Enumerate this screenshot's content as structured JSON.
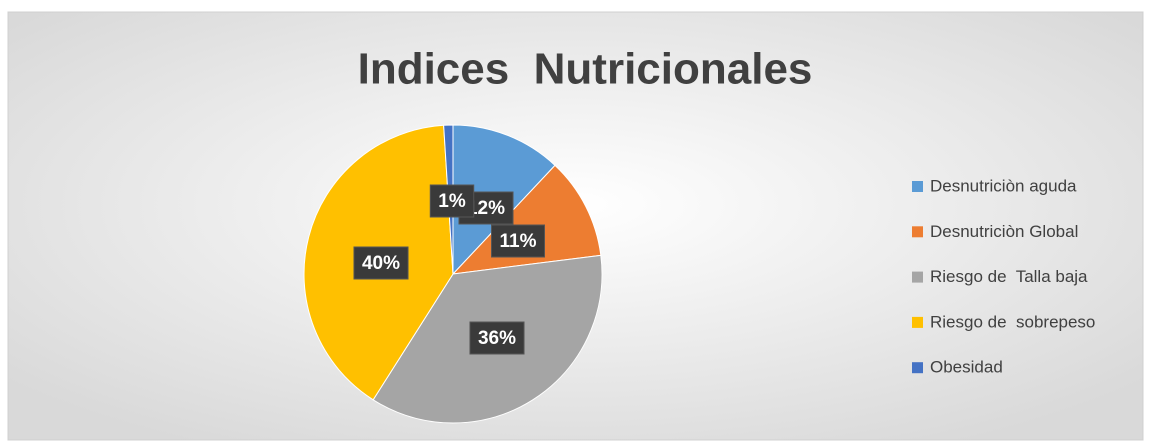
{
  "chart_data": {
    "type": "pie",
    "title": "Indices  Nutricionales",
    "categories": [
      "Desnutriciòn aguda",
      "Desnutriciòn Global",
      "Riesgo de  Talla baja",
      "Riesgo de  sobrepeso",
      "Obesidad"
    ],
    "values": [
      12,
      11,
      36,
      40,
      1
    ],
    "value_labels": [
      "12%",
      "11%",
      "36%",
      "40%",
      "1%"
    ],
    "colors": [
      "#5b9bd5",
      "#ed7d31",
      "#a5a5a5",
      "#ffc000",
      "#4472c4"
    ],
    "legend": "right"
  }
}
